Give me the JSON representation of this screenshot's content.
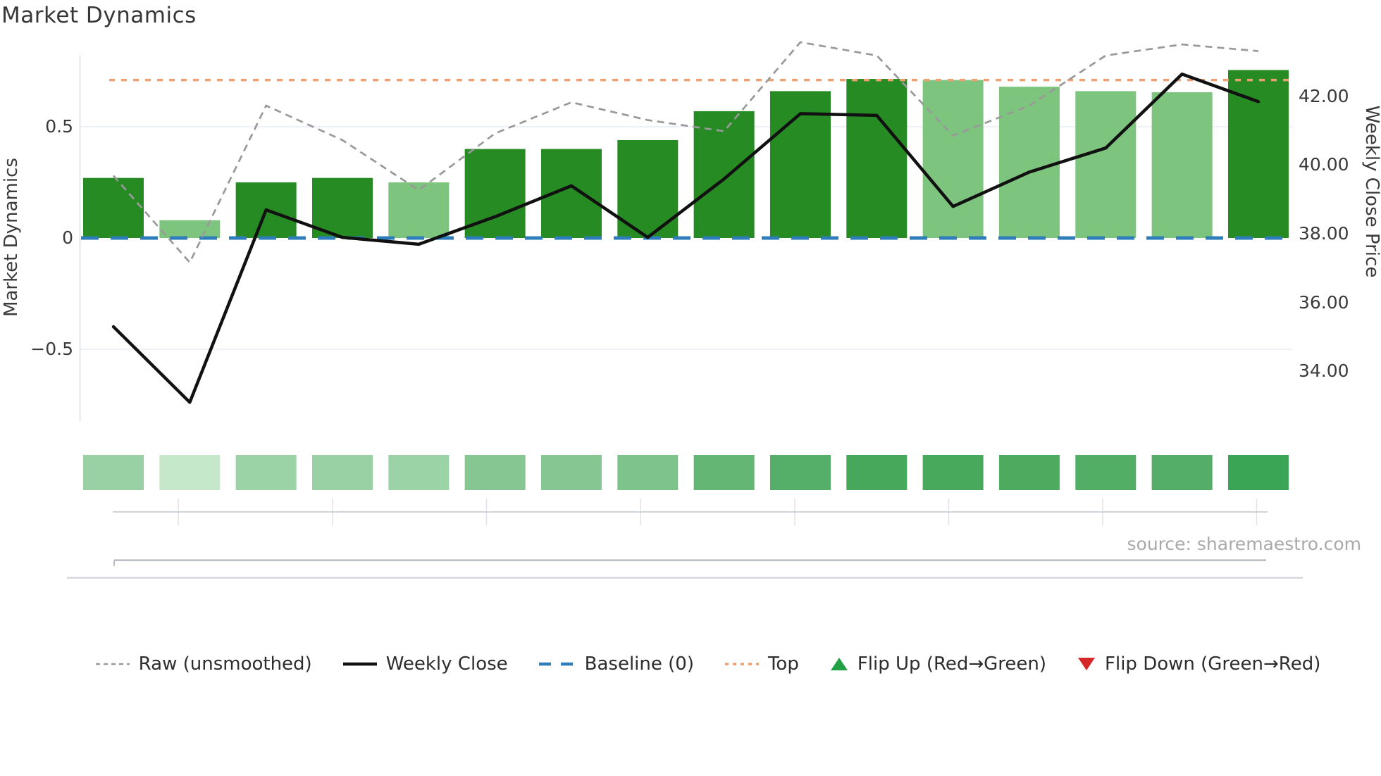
{
  "title": "Market Dynamics",
  "source_note": "source: sharemaestro.com",
  "left_axis": {
    "label": "Market Dynamics",
    "ticks": [
      {
        "value": 0.5,
        "label": "0.5"
      },
      {
        "value": 0,
        "label": "0"
      },
      {
        "value": -0.5,
        "label": "−0.5"
      }
    ]
  },
  "right_axis": {
    "label": "Weekly Close Price",
    "ticks": [
      {
        "value": 42,
        "label": "42.00"
      },
      {
        "value": 40,
        "label": "40.00"
      },
      {
        "value": 38,
        "label": "38.00"
      },
      {
        "value": 36,
        "label": "36.00"
      },
      {
        "value": 34,
        "label": "34.00"
      }
    ]
  },
  "legend": {
    "items": [
      {
        "label": "Raw (unsmoothed)",
        "swatch": "dashed-line",
        "color": "#999999"
      },
      {
        "label": "Weekly Close",
        "swatch": "solid-line",
        "color": "#111111"
      },
      {
        "label": "Baseline (0)",
        "swatch": "long-dash-line",
        "color": "#2e7ebc"
      },
      {
        "label": "Top",
        "swatch": "dotted-line",
        "color": "#f0a070"
      },
      {
        "label": "Flip Up (Red→Green)",
        "swatch": "triangle-up",
        "color": "#22a045"
      },
      {
        "label": "Flip Down (Green→Red)",
        "swatch": "triangle-down",
        "color": "#d62728"
      }
    ]
  },
  "colors": {
    "bar_dark": "#278b24",
    "bar_light": "#7dc47e",
    "weekly_close_line": "#111111",
    "raw_line": "#999999",
    "baseline_line": "#2e7ebc",
    "top_line": "#f0a070",
    "gridline": "#eef1f6",
    "spine": "#e4e7ee",
    "mini_axis_line": "#c3c7d1",
    "mini_axis_tick": "#dfe2e8",
    "divider_dark": "#a9adb6",
    "divider_light": "#d4d6dc"
  },
  "chart_data": {
    "type": "bar",
    "n_points": 16,
    "x_tick_labels": [],
    "title": "Market Dynamics",
    "left_ylabel": "Market Dynamics",
    "right_ylabel": "Weekly Close Price",
    "left_ylim": [
      -0.82,
      0.82
    ],
    "right_ylim": [
      32.55,
      43.2
    ],
    "grid_values_left": [
      0.5,
      -0.5
    ],
    "series": [
      {
        "name": "Market Dynamics bars",
        "type": "bar",
        "axis": "left",
        "values": [
          0.27,
          0.08,
          0.25,
          0.27,
          0.25,
          0.4,
          0.4,
          0.44,
          0.57,
          0.66,
          0.715,
          0.71,
          0.68,
          0.66,
          0.655,
          0.755
        ],
        "shade": [
          "dark",
          "light",
          "dark",
          "dark",
          "light",
          "dark",
          "dark",
          "dark",
          "dark",
          "dark",
          "dark",
          "light",
          "light",
          "light",
          "light",
          "dark"
        ]
      },
      {
        "name": "Raw (unsmoothed)",
        "type": "line",
        "style": "dashed",
        "axis": "left",
        "values": [
          0.28,
          -0.11,
          0.595,
          0.44,
          0.215,
          0.47,
          0.61,
          0.53,
          0.48,
          0.88,
          0.82,
          0.46,
          0.595,
          0.82,
          0.87,
          0.84
        ]
      },
      {
        "name": "Weekly Close",
        "type": "line",
        "style": "solid",
        "axis": "right",
        "values": [
          35.3,
          33.1,
          38.7,
          37.9,
          37.7,
          38.5,
          39.4,
          37.9,
          39.6,
          41.5,
          41.45,
          38.8,
          39.8,
          40.5,
          42.65,
          41.85
        ]
      },
      {
        "name": "Baseline (0)",
        "type": "hline",
        "axis": "left",
        "value": 0
      },
      {
        "name": "Top",
        "type": "hline",
        "axis": "left",
        "value": 0.71
      }
    ],
    "heat_strip": {
      "colors": [
        "#99d1a4",
        "#c5e8ca",
        "#9cd3a6",
        "#99d1a4",
        "#9cd3a6",
        "#85c692",
        "#85c692",
        "#7fc38c",
        "#63b674",
        "#55af68",
        "#47a85c",
        "#48a95d",
        "#4dab60",
        "#52ad65",
        "#54ae67",
        "#3aa655"
      ]
    }
  }
}
